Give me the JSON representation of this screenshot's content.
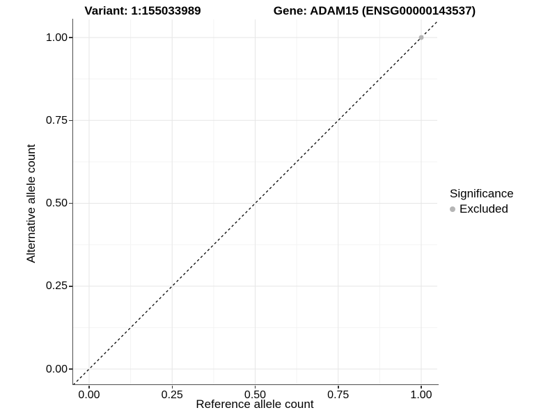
{
  "chart_data": {
    "type": "scatter",
    "title_left": "Variant: 1:155033989",
    "title_right": "Gene: ADAM15 (ENSG00000143537)",
    "xlabel": "Reference allele count",
    "ylabel": "Alternative allele count",
    "xlim": [
      -0.048,
      1.048
    ],
    "ylim": [
      -0.048,
      1.048
    ],
    "x_ticks": {
      "values": [
        0,
        0.25,
        0.5,
        0.75,
        1
      ],
      "labels": [
        "0.00",
        "0.25",
        "0.50",
        "0.75",
        "1.00"
      ]
    },
    "y_ticks": {
      "values": [
        0,
        0.25,
        0.5,
        0.75,
        1
      ],
      "labels": [
        "0.00",
        "0.25",
        "0.50",
        "0.75",
        "1.00"
      ]
    },
    "minor_gridline_positions": [
      0.125,
      0.375,
      0.625,
      0.875
    ],
    "grid": {
      "on": true,
      "major_color": "#e6e6e6",
      "minor_color": "#f3f3f3"
    },
    "reference_line": {
      "type": "identity y=x",
      "style": "dashed",
      "color": "#000000"
    },
    "series": [
      {
        "name": "Excluded",
        "color": "#b5b5b5",
        "points": [
          {
            "x": 1.0,
            "y": 1.0
          }
        ]
      }
    ],
    "legend": {
      "title": "Significance",
      "position": "right",
      "entries": [
        {
          "label": "Excluded",
          "color": "#b5b5b5"
        }
      ]
    },
    "colors": {
      "axis_line": "#4d4d4d",
      "tick_mark": "#333333",
      "text": "#000000",
      "background": "#ffffff"
    }
  }
}
